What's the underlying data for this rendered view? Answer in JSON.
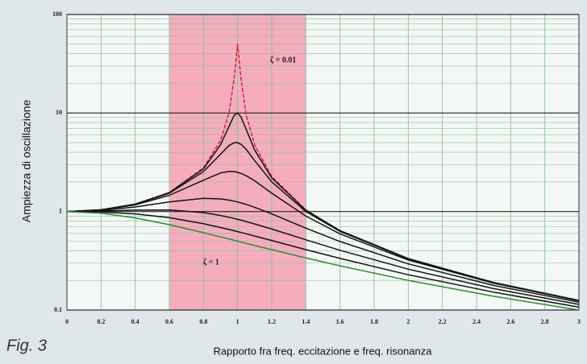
{
  "chart_data": {
    "type": "line",
    "title": "Fig. 3",
    "x_label": "Rapporto fra freq. eccitazione e freq. risonanza",
    "y_label": "Ampiezza di oscillazione",
    "annotations": [
      "ζ = 0.01",
      "ζ = 1"
    ],
    "x": [
      0,
      0.2,
      0.4,
      0.6,
      0.8,
      0.9,
      0.95,
      0.98,
      1,
      1.02,
      1.05,
      1.1,
      1.2,
      1.4,
      1.6,
      2,
      2.5,
      3
    ],
    "series": [
      {
        "color": "#d8203c",
        "dash": true,
        "values": [
          1,
          1.042,
          1.19,
          1.562,
          2.775,
          5.24,
          10.07,
          22.6,
          50,
          22.1,
          9.56,
          4.74,
          2.27,
          1.04,
          0.641,
          0.333,
          0.19,
          0.125
        ]
      },
      {
        "color": "#141414",
        "values": [
          1,
          1.041,
          1.189,
          1.556,
          2.71,
          4.76,
          7.35,
          9.46,
          10,
          9.11,
          6.81,
          4.22,
          2.19,
          1.031,
          0.638,
          0.333,
          0.19,
          0.125
        ]
      },
      {
        "color": "#141414",
        "values": [
          1,
          1.041,
          1.185,
          1.536,
          2.54,
          3.82,
          4.68,
          5.0,
          5,
          4.81,
          4.28,
          3.29,
          2.0,
          1.0,
          0.628,
          0.33,
          0.19,
          0.125
        ]
      },
      {
        "color": "#141414",
        "values": [
          1,
          1.038,
          1.169,
          1.463,
          2.08,
          2.46,
          2.55,
          2.54,
          2.5,
          2.44,
          2.31,
          2.05,
          1.536,
          0.9,
          0.593,
          0.322,
          0.187,
          0.124
        ]
      },
      {
        "color": "#141414",
        "values": [
          1,
          1.027,
          1.112,
          1.25,
          1.362,
          1.343,
          1.305,
          1.274,
          1.25,
          1.224,
          1.182,
          1.105,
          0.947,
          0.678,
          0.496,
          0.294,
          0.178,
          0.12
        ]
      },
      {
        "color": "#141414",
        "values": [
          1,
          1.011,
          1.034,
          1.038,
          0.975,
          0.912,
          0.874,
          0.85,
          0.833,
          0.817,
          0.791,
          0.748,
          0.664,
          0.517,
          0.404,
          0.26,
          0.165,
          0.114
        ]
      },
      {
        "color": "#141414",
        "values": [
          1,
          0.988,
          0.947,
          0.867,
          0.752,
          0.688,
          0.657,
          0.638,
          0.625,
          0.613,
          0.594,
          0.564,
          0.508,
          0.41,
          0.334,
          0.228,
          0.152,
          0.107
        ]
      },
      {
        "color": "#2a8a3a",
        "values": [
          1,
          0.962,
          0.862,
          0.735,
          0.61,
          0.552,
          0.526,
          0.51,
          0.5,
          0.49,
          0.476,
          0.452,
          0.41,
          0.338,
          0.281,
          0.2,
          0.138,
          0.1
        ]
      }
    ],
    "xlim": [
      0,
      3
    ],
    "xticks": [
      0,
      0.2,
      0.4,
      0.6,
      0.8,
      1,
      1.2,
      1.4,
      1.6,
      1.8,
      2,
      2.2,
      2.4,
      2.6,
      2.8,
      3
    ],
    "ylim": [
      0.1,
      100
    ],
    "yticks": [
      0.1,
      1,
      10,
      100
    ],
    "y_log": true,
    "grid": true,
    "minor_grid": true,
    "highlight_x": [
      0.6,
      1.4
    ],
    "highlight_color": "#f4a0b4"
  }
}
